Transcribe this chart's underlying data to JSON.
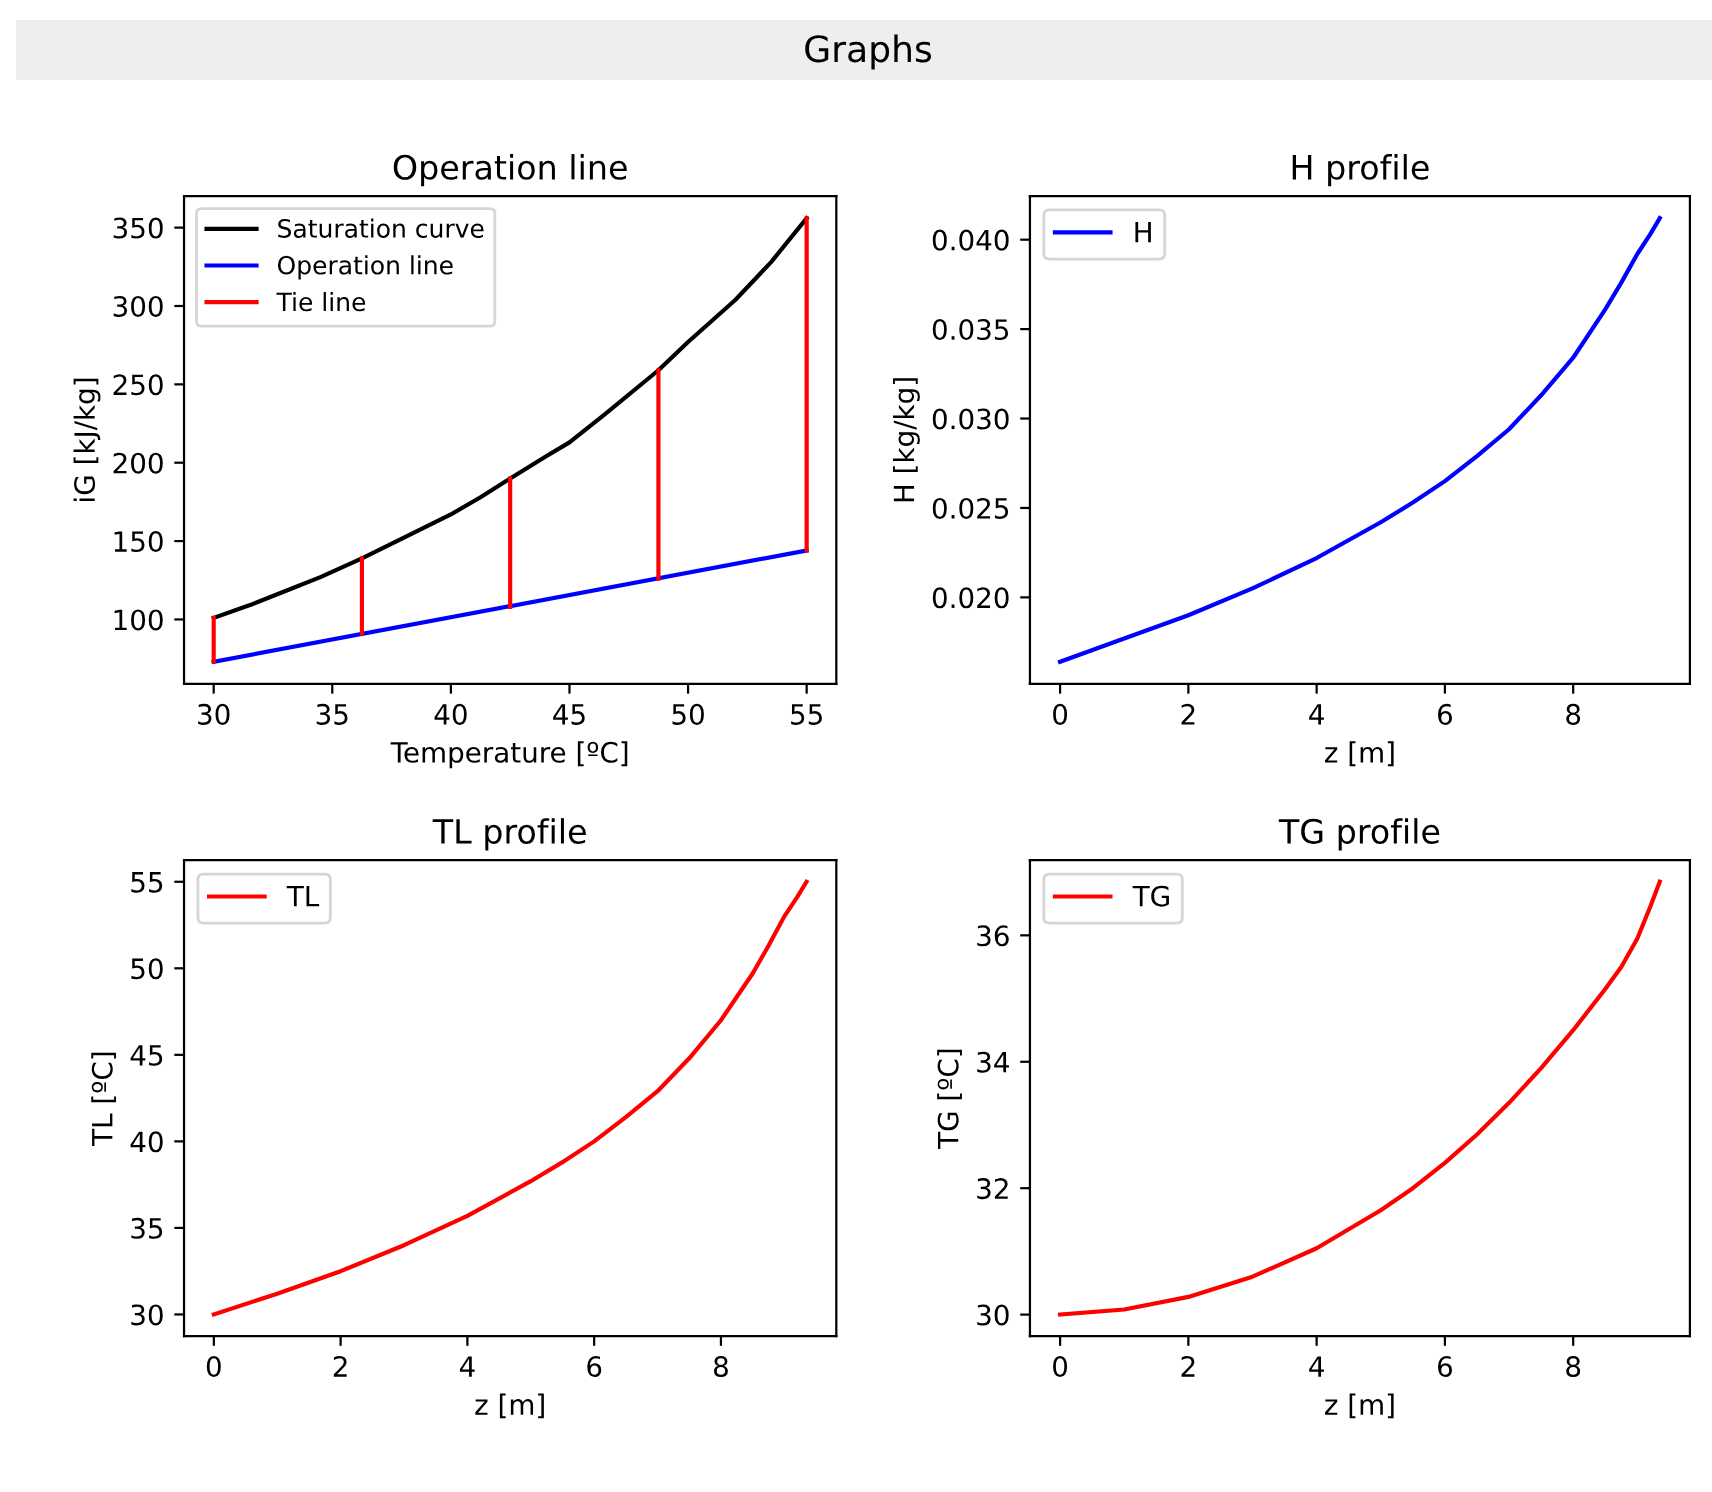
{
  "chart_data": [
    {
      "type": "line",
      "title": "Operation line",
      "xlabel": "Temperature [ºC]",
      "ylabel": "iG [kJ/kg]",
      "annotations": [
        "Graphs"
      ],
      "legend": "top left",
      "xlim": [
        28.75,
        56.25
      ],
      "xticks": [
        30,
        35,
        40,
        45,
        50,
        55
      ],
      "ylim": [
        58.85,
        370.15
      ],
      "yticks": [
        100,
        150,
        200,
        250,
        300,
        350
      ],
      "series": [
        {
          "name": "Saturation curve",
          "color": "#000000",
          "x": [
            30,
            31.5,
            33,
            34.5,
            36.25,
            38,
            40,
            41.25,
            42.5,
            44,
            45,
            46.5,
            48.75,
            50,
            52,
            53.5,
            55
          ],
          "values": [
            101,
            109,
            118,
            127,
            139,
            152,
            167,
            178,
            190,
            204,
            213,
            231,
            259,
            277,
            304,
            328,
            356
          ]
        },
        {
          "name": "Operation line",
          "color": "#0000ff",
          "x": [
            30,
            55
          ],
          "values": [
            73,
            144
          ]
        },
        {
          "name": "Tie line",
          "color": "#ff0000",
          "x": [
            30,
            30
          ],
          "values": [
            73,
            101
          ]
        },
        {
          "color": "#ff0000",
          "x": [
            36.25,
            36.25
          ],
          "values": [
            91,
            139
          ]
        },
        {
          "color": "#ff0000",
          "x": [
            42.5,
            42.5
          ],
          "values": [
            108,
            190
          ]
        },
        {
          "color": "#ff0000",
          "x": [
            48.75,
            48.75
          ],
          "values": [
            126,
            259
          ]
        },
        {
          "color": "#ff0000",
          "x": [
            55,
            55
          ],
          "values": [
            144,
            356
          ]
        }
      ]
    },
    {
      "type": "line",
      "title": "H profile",
      "xlabel": "z [m]",
      "ylabel": "H [kg/kg]",
      "legend": "top left",
      "xlim": [
        -0.47,
        9.82
      ],
      "xticks": [
        0,
        2,
        4,
        6,
        8
      ],
      "ylim": [
        0.01516,
        0.04244
      ],
      "yticks": [
        {
          "value": 0.02,
          "label": "0.020"
        },
        0.025,
        {
          "value": 0.03,
          "label": "0.030"
        },
        0.035,
        {
          "value": 0.04,
          "label": "0.040"
        }
      ],
      "series": [
        {
          "name": "H",
          "color": "#0000ff",
          "x": [
            0,
            1,
            2,
            3,
            4,
            5,
            5.5,
            6,
            6.5,
            7,
            7.5,
            8,
            8.5,
            8.75,
            9,
            9.2,
            9.35
          ],
          "values": [
            0.0164,
            0.0177,
            0.019,
            0.0205,
            0.0222,
            0.0242,
            0.0253,
            0.0265,
            0.0279,
            0.0294,
            0.0313,
            0.0334,
            0.0361,
            0.0376,
            0.0392,
            0.0403,
            0.0412
          ]
        }
      ]
    },
    {
      "type": "line",
      "title": "TL profile",
      "xlabel": "z [m]",
      "ylabel": "TL [ºC]",
      "legend": "top left",
      "xlim": [
        -0.47,
        9.82
      ],
      "xticks": [
        0,
        2,
        4,
        6,
        8
      ],
      "ylim": [
        28.75,
        56.25
      ],
      "yticks": [
        30,
        35,
        40,
        45,
        50,
        55
      ],
      "series": [
        {
          "name": "TL",
          "color": "#ff0000",
          "x": [
            0,
            1,
            2,
            3,
            4,
            5,
            5.5,
            6,
            6.5,
            7,
            7.5,
            8,
            8.5,
            8.75,
            9,
            9.2,
            9.35
          ],
          "values": [
            30,
            31.2,
            32.5,
            34,
            35.7,
            37.7,
            38.8,
            40,
            41.4,
            42.9,
            44.8,
            47,
            49.7,
            51.3,
            53,
            54.1,
            55
          ]
        }
      ]
    },
    {
      "type": "line",
      "title": "TG profile",
      "xlabel": "z [m]",
      "ylabel": "TG [ºC]",
      "legend": "top left",
      "xlim": [
        -0.47,
        9.82
      ],
      "xticks": [
        0,
        2,
        4,
        6,
        8
      ],
      "ylim": [
        29.66,
        37.19
      ],
      "yticks": [
        30,
        32,
        34,
        36
      ],
      "series": [
        {
          "name": "TG",
          "color": "#ff0000",
          "x": [
            0,
            1,
            2,
            3,
            4,
            5,
            5.5,
            6,
            6.5,
            7,
            7.5,
            8,
            8.5,
            8.75,
            9,
            9.2,
            9.35
          ],
          "values": [
            30,
            30.08,
            30.28,
            30.6,
            31.05,
            31.65,
            32.0,
            32.4,
            32.85,
            33.35,
            33.9,
            34.5,
            35.15,
            35.5,
            35.95,
            36.45,
            36.85
          ]
        }
      ]
    }
  ]
}
